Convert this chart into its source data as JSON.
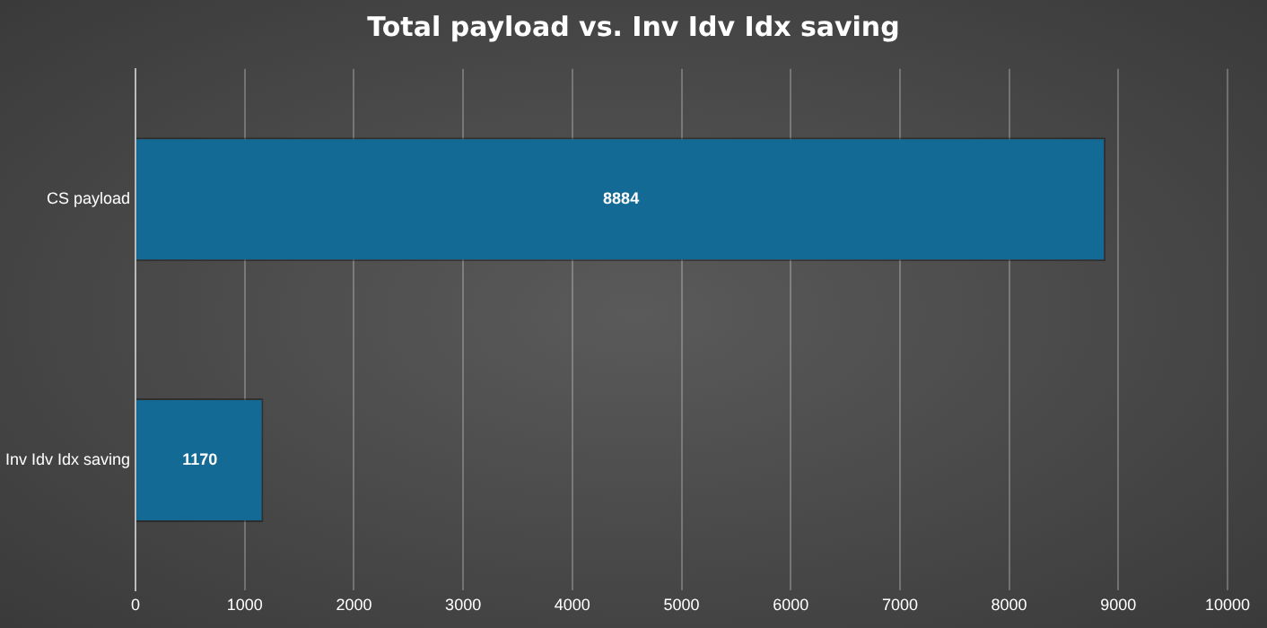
{
  "chart_data": {
    "type": "bar",
    "orientation": "horizontal",
    "title": "Total payload vs. Inv Idv Idx saving",
    "categories": [
      "CS payload",
      "Inv Idv Idx saving"
    ],
    "values": [
      8884,
      1170
    ],
    "color": "#136a94",
    "xlim": [
      0,
      10000
    ],
    "xticks": [
      0,
      1000,
      2000,
      3000,
      4000,
      5000,
      6000,
      7000,
      8000,
      9000,
      10000
    ],
    "grid": "x",
    "data_labels": true
  }
}
